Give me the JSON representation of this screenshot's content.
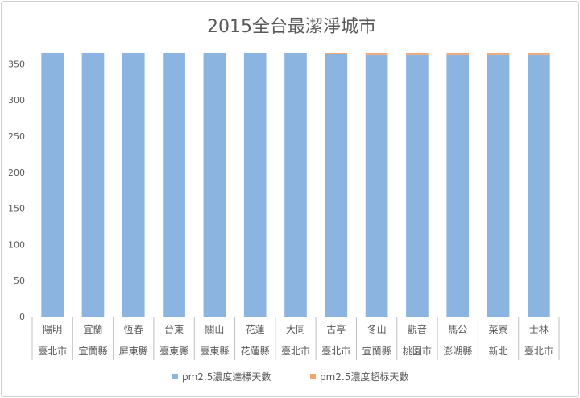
{
  "chart_data": {
    "type": "bar",
    "stacked": true,
    "title": "2015全台最潔淨城市",
    "xlabel": "",
    "ylabel": "",
    "ylim": [
      0,
      365
    ],
    "yticks": [
      0,
      50,
      100,
      150,
      200,
      250,
      300,
      350
    ],
    "grid": false,
    "legend_position": "bottom",
    "categories": [
      {
        "line1": "陽明",
        "line2": "臺北市"
      },
      {
        "line1": "宜蘭",
        "line2": "宜蘭縣"
      },
      {
        "line1": "恆春",
        "line2": "屏東縣"
      },
      {
        "line1": "台東",
        "line2": "臺東縣"
      },
      {
        "line1": "關山",
        "line2": "臺東縣"
      },
      {
        "line1": "花蓮",
        "line2": "花蓮縣"
      },
      {
        "line1": "大同",
        "line2": "臺北市"
      },
      {
        "line1": "古亭",
        "line2": "臺北市"
      },
      {
        "line1": "冬山",
        "line2": "宜蘭縣"
      },
      {
        "line1": "觀音",
        "line2": "桃園市"
      },
      {
        "line1": "馬公",
        "line2": "澎湖縣"
      },
      {
        "line1": "菜寮",
        "line2": "新北"
      },
      {
        "line1": "士林",
        "line2": "臺北市"
      }
    ],
    "series": [
      {
        "name": "pm2.5濃度達標天數",
        "color": "#8cb4e0",
        "values": [
          365,
          365,
          365,
          365,
          365,
          365,
          365,
          364,
          363,
          363,
          363,
          363,
          363
        ]
      },
      {
        "name": "pm2.5濃度超标天數",
        "color": "#f4a46e",
        "values": [
          0,
          0,
          0,
          0,
          0,
          0,
          0,
          1,
          2,
          2,
          2,
          2,
          2
        ]
      }
    ]
  }
}
